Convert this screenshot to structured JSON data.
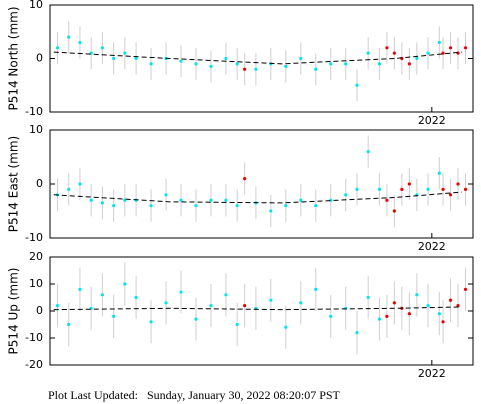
{
  "chart_data": [
    {
      "type": "scatter",
      "ylabel": "P514 North (mm)",
      "xlim": [
        2020.98,
        2022.11
      ],
      "xticks": [
        {
          "value": 2022,
          "label": "2022"
        }
      ],
      "ylim": [
        -10,
        10
      ],
      "yticks": [
        -10,
        0,
        10
      ],
      "series": [
        {
          "color": "#00e5ee",
          "error": 3,
          "x": [
            2021.0,
            2021.03,
            2021.06,
            2021.09,
            2021.12,
            2021.15,
            2021.18,
            2021.21,
            2021.25,
            2021.29,
            2021.33,
            2021.37,
            2021.41,
            2021.45,
            2021.48,
            2021.53,
            2021.57,
            2021.61,
            2021.65,
            2021.69,
            2021.73,
            2021.77,
            2021.8,
            2021.83,
            2021.86,
            2021.96,
            2021.99,
            2022.02
          ],
          "values": [
            2,
            4,
            3,
            1,
            2,
            0,
            1,
            0,
            -1,
            0,
            -0.5,
            -1,
            -1.5,
            0,
            -1,
            -2,
            -1,
            -1.5,
            0,
            -2,
            -1,
            -1,
            -5,
            1,
            -1,
            0,
            1,
            3
          ]
        },
        {
          "color": "#ee0000",
          "error": 3,
          "x": [
            2021.5,
            2021.88,
            2021.9,
            2021.92,
            2021.94,
            2022.03,
            2022.05,
            2022.07,
            2022.09
          ],
          "values": [
            -2,
            2,
            1,
            0,
            -1,
            1,
            2,
            1,
            2
          ]
        },
        {
          "color": "#000000",
          "line": "dashed",
          "x": [
            2020.99,
            2021.3,
            2021.6,
            2021.9,
            2022.08
          ],
          "values": [
            1.2,
            0,
            -1,
            0,
            1.2
          ]
        }
      ]
    },
    {
      "type": "scatter",
      "ylabel": "P514 East (mm)",
      "xlim": [
        2020.98,
        2022.11
      ],
      "xticks": [
        {
          "value": 2022,
          "label": "2022"
        }
      ],
      "ylim": [
        -10,
        10
      ],
      "yticks": [
        -10,
        0,
        10
      ],
      "series": [
        {
          "color": "#00e5ee",
          "error": 3,
          "x": [
            2021.0,
            2021.03,
            2021.06,
            2021.09,
            2021.12,
            2021.15,
            2021.18,
            2021.21,
            2021.25,
            2021.29,
            2021.33,
            2021.37,
            2021.41,
            2021.45,
            2021.48,
            2021.53,
            2021.57,
            2021.61,
            2021.65,
            2021.69,
            2021.73,
            2021.77,
            2021.8,
            2021.83,
            2021.86,
            2021.96,
            2021.99,
            2022.02
          ],
          "values": [
            -2,
            -1,
            0,
            -3,
            -3.5,
            -4,
            -3,
            -3,
            -4,
            -2,
            -3,
            -4,
            -3,
            -3,
            -4,
            -3.5,
            -5,
            -4,
            -3,
            -4,
            -3,
            -2,
            -1,
            6,
            -1,
            -2,
            -1,
            2
          ]
        },
        {
          "color": "#ee0000",
          "error": 3,
          "x": [
            2021.5,
            2021.88,
            2021.9,
            2021.92,
            2021.94,
            2022.03,
            2022.05,
            2022.07,
            2022.09
          ],
          "values": [
            1,
            -3,
            -5,
            -1,
            0,
            -1,
            -2,
            0,
            -1
          ]
        },
        {
          "color": "#000000",
          "line": "dashed",
          "x": [
            2020.99,
            2021.3,
            2021.6,
            2021.9,
            2022.08
          ],
          "values": [
            -2,
            -3.3,
            -3.5,
            -2.5,
            -1.5
          ]
        }
      ]
    },
    {
      "type": "scatter",
      "ylabel": "P514 Up (mm)",
      "xlim": [
        2020.98,
        2022.11
      ],
      "xticks": [
        {
          "value": 2022,
          "label": "2022"
        }
      ],
      "ylim": [
        -20,
        20
      ],
      "yticks": [
        -20,
        -10,
        0,
        10,
        20
      ],
      "series": [
        {
          "color": "#00e5ee",
          "error": 8,
          "x": [
            2021.0,
            2021.03,
            2021.06,
            2021.09,
            2021.12,
            2021.15,
            2021.18,
            2021.21,
            2021.25,
            2021.29,
            2021.33,
            2021.37,
            2021.41,
            2021.45,
            2021.48,
            2021.53,
            2021.57,
            2021.61,
            2021.65,
            2021.69,
            2021.73,
            2021.77,
            2021.8,
            2021.83,
            2021.86,
            2021.96,
            2021.99,
            2022.02
          ],
          "values": [
            2,
            -5,
            8,
            1,
            6,
            -2,
            10,
            5,
            -4,
            3,
            7,
            -3,
            2,
            6,
            -5,
            1,
            4,
            -6,
            3,
            8,
            -2,
            1,
            -8,
            5,
            -3,
            6,
            2,
            -1
          ]
        },
        {
          "color": "#ee0000",
          "error": 8,
          "x": [
            2021.5,
            2021.88,
            2021.9,
            2021.92,
            2021.94,
            2022.03,
            2022.05,
            2022.07,
            2022.09
          ],
          "values": [
            2,
            -2,
            3,
            1,
            -1,
            -4,
            4,
            2,
            8
          ]
        },
        {
          "color": "#000000",
          "line": "dashed",
          "x": [
            2020.99,
            2021.3,
            2021.6,
            2021.9,
            2022.08
          ],
          "values": [
            0.5,
            1,
            0.5,
            1,
            1.5
          ]
        }
      ]
    }
  ],
  "footer": "Plot Last Updated:   Sunday, January 30, 2022 08:20:07 PST"
}
